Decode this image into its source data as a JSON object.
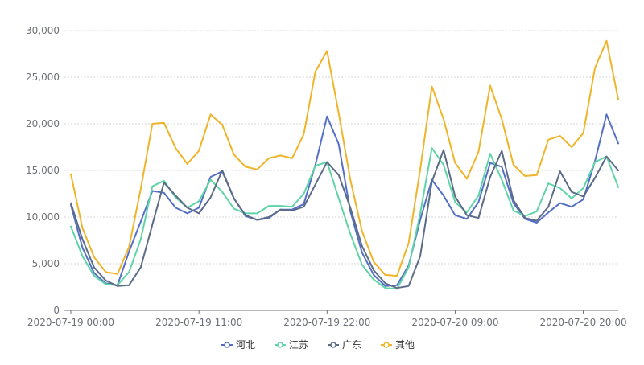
{
  "chart_data": {
    "type": "line",
    "title": "",
    "xlabel": "",
    "ylabel": "",
    "ylim": [
      0,
      30000
    ],
    "y_ticks": [
      0,
      5000,
      10000,
      15000,
      20000,
      25000,
      30000
    ],
    "y_tick_labels": [
      "0",
      "5,000",
      "10,000",
      "15,000",
      "20,000",
      "25,000",
      "30,000"
    ],
    "x": [
      "2020-07-19 00:00",
      "2020-07-19 01:00",
      "2020-07-19 02:00",
      "2020-07-19 03:00",
      "2020-07-19 04:00",
      "2020-07-19 05:00",
      "2020-07-19 06:00",
      "2020-07-19 07:00",
      "2020-07-19 08:00",
      "2020-07-19 09:00",
      "2020-07-19 10:00",
      "2020-07-19 11:00",
      "2020-07-19 12:00",
      "2020-07-19 13:00",
      "2020-07-19 14:00",
      "2020-07-19 15:00",
      "2020-07-19 16:00",
      "2020-07-19 17:00",
      "2020-07-19 18:00",
      "2020-07-19 19:00",
      "2020-07-19 20:00",
      "2020-07-19 21:00",
      "2020-07-19 22:00",
      "2020-07-19 23:00",
      "2020-07-20 00:00",
      "2020-07-20 01:00",
      "2020-07-20 02:00",
      "2020-07-20 03:00",
      "2020-07-20 04:00",
      "2020-07-20 05:00",
      "2020-07-20 06:00",
      "2020-07-20 07:00",
      "2020-07-20 08:00",
      "2020-07-20 09:00",
      "2020-07-20 10:00",
      "2020-07-20 11:00",
      "2020-07-20 12:00",
      "2020-07-20 13:00",
      "2020-07-20 14:00",
      "2020-07-20 15:00",
      "2020-07-20 16:00",
      "2020-07-20 17:00",
      "2020-07-20 18:00",
      "2020-07-20 19:00",
      "2020-07-20 20:00",
      "2020-07-20 21:00",
      "2020-07-20 22:00",
      "2020-07-20 23:00"
    ],
    "x_tick_labels": [
      "2020-07-19 00:00",
      "2020-07-19 11:00",
      "2020-07-19 22:00",
      "2020-07-20 09:00",
      "2020-07-20 20:00"
    ],
    "legend_position": "bottom-center",
    "grid": true,
    "series": [
      {
        "name": "河北",
        "color": "#5470c6",
        "values": [
          11300,
          6700,
          4000,
          2900,
          2700,
          6300,
          9500,
          12800,
          12600,
          11000,
          10400,
          11000,
          14300,
          14900,
          12000,
          10100,
          9700,
          9900,
          10800,
          10800,
          11400,
          15600,
          20800,
          17800,
          10600,
          6200,
          3800,
          2600,
          2700,
          4800,
          9700,
          14000,
          12300,
          10200,
          9800,
          11600,
          15800,
          15400,
          11500,
          9800,
          9400,
          10500,
          11500,
          11100,
          11900,
          16000,
          21000,
          17900
        ]
      },
      {
        "name": "江苏",
        "color": "#5fd4a6",
        "values": [
          9000,
          5800,
          3700,
          2800,
          2700,
          4100,
          7600,
          13300,
          13900,
          12100,
          11000,
          11700,
          14000,
          12700,
          10900,
          10400,
          10400,
          11200,
          11200,
          11100,
          12500,
          15500,
          15900,
          12000,
          8200,
          4900,
          3300,
          2400,
          2300,
          4600,
          10400,
          17400,
          15600,
          11600,
          10500,
          12300,
          16800,
          14000,
          10700,
          10100,
          10600,
          13600,
          13100,
          12000,
          13100,
          15900,
          16500,
          13200
        ]
      },
      {
        "name": "广东",
        "color": "#5b6b88",
        "values": [
          11500,
          7600,
          4600,
          3200,
          2600,
          2700,
          4600,
          9200,
          13700,
          12300,
          11000,
          10400,
          12100,
          15000,
          12000,
          10200,
          9700,
          10000,
          10800,
          10700,
          11100,
          13500,
          15900,
          14500,
          11000,
          6900,
          4300,
          2900,
          2400,
          2600,
          5800,
          13800,
          17200,
          12200,
          10200,
          9900,
          14300,
          17100,
          11800,
          9900,
          9600,
          11100,
          14900,
          12700,
          12200,
          14200,
          16500,
          15000
        ]
      },
      {
        "name": "其他",
        "color": "#f0b429",
        "values": [
          14600,
          8800,
          5700,
          4100,
          3900,
          6800,
          13000,
          20000,
          20100,
          17400,
          15700,
          17100,
          21000,
          19900,
          16700,
          15400,
          15100,
          16300,
          16600,
          16300,
          18900,
          25600,
          27800,
          21100,
          14000,
          8500,
          5200,
          3800,
          3700,
          7200,
          15100,
          24000,
          20500,
          15800,
          14100,
          17000,
          24100,
          20500,
          15600,
          14400,
          14500,
          18300,
          18700,
          17500,
          19000,
          26000,
          28900,
          22600
        ]
      }
    ]
  }
}
